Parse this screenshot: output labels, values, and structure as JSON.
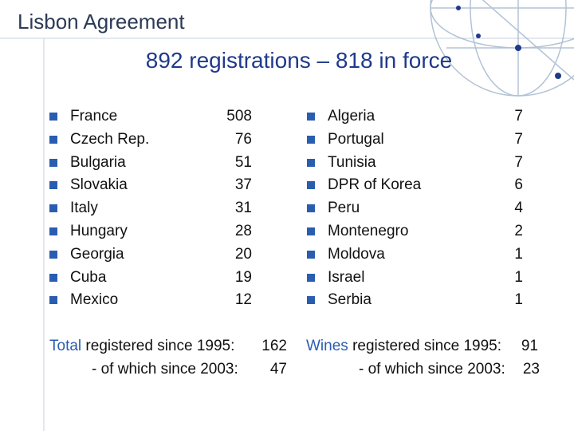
{
  "header": {
    "title": "Lisbon Agreement",
    "subtitle": "892 registrations – 818 in force"
  },
  "lists": [
    {
      "items": [
        {
          "country": "France",
          "count": 508
        },
        {
          "country": "Czech Rep.",
          "count": 76
        },
        {
          "country": "Bulgaria",
          "count": 51
        },
        {
          "country": "Slovakia",
          "count": 37
        },
        {
          "country": "Italy",
          "count": 31
        },
        {
          "country": "Hungary",
          "count": 28
        },
        {
          "country": "Georgia",
          "count": 20
        },
        {
          "country": "Cuba",
          "count": 19
        },
        {
          "country": "Mexico",
          "count": 12
        }
      ]
    },
    {
      "items": [
        {
          "country": "Algeria",
          "count": 7
        },
        {
          "country": "Portugal",
          "count": 7
        },
        {
          "country": "Tunisia",
          "count": 7
        },
        {
          "country": "DPR of Korea",
          "count": 6
        },
        {
          "country": "Peru",
          "count": 4
        },
        {
          "country": "Montenegro",
          "count": 2
        },
        {
          "country": "Moldova",
          "count": 1
        },
        {
          "country": "Israel",
          "count": 1
        },
        {
          "country": "Serbia",
          "count": 1
        }
      ]
    }
  ],
  "totals": [
    {
      "keyword": "Total",
      "text": "registered since 1995:",
      "value": 162,
      "sub_text": "- of which since 2003:",
      "sub_value": 47
    },
    {
      "keyword": "Wines",
      "text": "registered since 1995:",
      "value": 91,
      "sub_text": "- of which since 2003:",
      "sub_value": 23
    }
  ]
}
